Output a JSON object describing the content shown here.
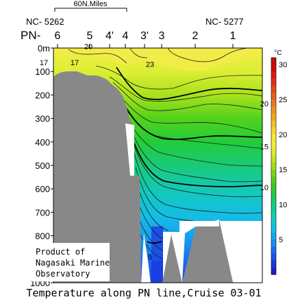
{
  "chart_data": {
    "type": "heatmap",
    "title": "Temperature along PN line,Cruise 03-01",
    "unit_label": "°C",
    "scale_bar_label": "60N.Miles",
    "station_ids": {
      "left": "NC- 5262",
      "right": "NC- 5277"
    },
    "station_prefix": "PN-",
    "stations": [
      "6",
      "5",
      "4'",
      "4",
      "3'",
      "3",
      "2",
      "1"
    ],
    "depth_axis": {
      "ticks": [
        "0m",
        "100",
        "200",
        "300",
        "400",
        "500",
        "600",
        "700",
        "800",
        "900",
        "1000"
      ],
      "range_m": [
        0,
        1000
      ]
    },
    "colorbar": {
      "ticks": [
        "30",
        "25",
        "20",
        "15",
        "10",
        "5"
      ],
      "range": [
        0,
        31
      ]
    },
    "contour_labels": [
      {
        "text": "20",
        "near_station": "5",
        "depth": 40,
        "side": "left"
      },
      {
        "text": "23",
        "near_station": "3'",
        "depth": 80,
        "side": "left"
      },
      {
        "text": "17",
        "near_station": "6",
        "depth": 90,
        "side": "left"
      },
      {
        "text": "17",
        "near_station": "5",
        "depth": 90,
        "side": "left"
      },
      {
        "text": "20",
        "near_station": "1",
        "depth": 220,
        "side": "right"
      },
      {
        "text": "15",
        "near_station": "1",
        "depth": 420,
        "side": "right"
      },
      {
        "text": "10",
        "near_station": "1",
        "depth": 600,
        "side": "right"
      },
      {
        "text": "5",
        "near_station": "3'",
        "depth": 890,
        "side": "right"
      }
    ],
    "credit": [
      "Product of",
      "Nagasaki Marine",
      "Observatory"
    ]
  }
}
